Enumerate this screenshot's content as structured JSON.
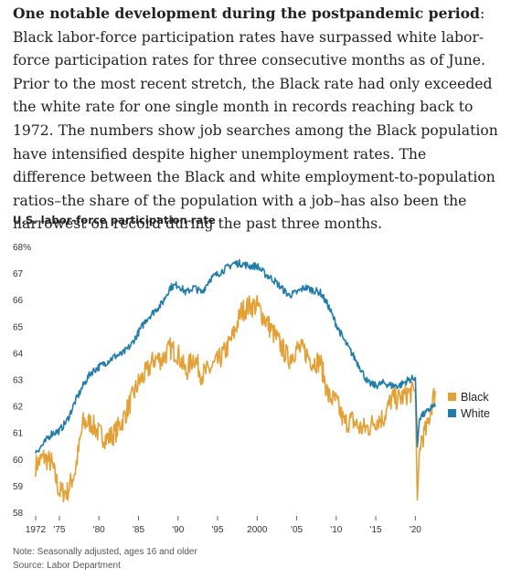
{
  "article": {
    "lead_bold": "One notable development during the postpandemic period",
    "lead_text": ": Black labor-force participation rates have surpassed white labor-force participation rates for three consecutive months as of June. Prior to the most recent stretch, the Black rate had only exceeded the white rate for one single month in records reaching back to 1972. The numbers show job searches among the Black population have intensified despite higher unemployment rates. The difference between the Black and white employment-to-population ratios–the share of the population with a job–has also been the narrowest on record during the past three months."
  },
  "chart_data": {
    "type": "line",
    "title": "U.S. labor-force participation rate",
    "xlim": [
      1972,
      2022.5
    ],
    "ylim": [
      58,
      68
    ],
    "y_ticks": [
      58,
      59,
      60,
      61,
      62,
      63,
      64,
      65,
      66,
      67,
      68
    ],
    "y_tick_labels": [
      "58",
      "59",
      "60",
      "61",
      "62",
      "63",
      "64",
      "65",
      "66",
      "67",
      "68%"
    ],
    "x_ticks": [
      1972,
      1975,
      1980,
      1985,
      1990,
      1995,
      2000,
      2005,
      2010,
      2015,
      2020
    ],
    "x_tick_labels": [
      "1972",
      "'75",
      "'80",
      "'85",
      "'90",
      "'95",
      "2000",
      "'05",
      "'10",
      "'15",
      "'20"
    ],
    "series": [
      {
        "name": "Black",
        "color": "#e3a035",
        "points": [
          [
            1972,
            59.8
          ],
          [
            1973,
            60.1
          ],
          [
            1974,
            59.9
          ],
          [
            1975,
            58.8
          ],
          [
            1976,
            58.8
          ],
          [
            1977,
            59.6
          ],
          [
            1978,
            61.4
          ],
          [
            1979,
            61.4
          ],
          [
            1980,
            61.0
          ],
          [
            1981,
            60.8
          ],
          [
            1982,
            61.0
          ],
          [
            1983,
            61.5
          ],
          [
            1984,
            62.2
          ],
          [
            1985,
            62.9
          ],
          [
            1986,
            63.3
          ],
          [
            1987,
            63.8
          ],
          [
            1988,
            63.8
          ],
          [
            1989,
            64.2
          ],
          [
            1990,
            64.0
          ],
          [
            1991,
            63.3
          ],
          [
            1992,
            63.9
          ],
          [
            1993,
            63.2
          ],
          [
            1994,
            63.4
          ],
          [
            1995,
            63.7
          ],
          [
            1996,
            64.1
          ],
          [
            1997,
            64.7
          ],
          [
            1998,
            65.6
          ],
          [
            1999,
            65.8
          ],
          [
            2000,
            65.8
          ],
          [
            2001,
            65.3
          ],
          [
            2002,
            64.8
          ],
          [
            2003,
            64.3
          ],
          [
            2004,
            63.8
          ],
          [
            2005,
            64.2
          ],
          [
            2006,
            64.1
          ],
          [
            2007,
            63.7
          ],
          [
            2008,
            63.7
          ],
          [
            2009,
            62.4
          ],
          [
            2010,
            62.2
          ],
          [
            2011,
            61.4
          ],
          [
            2012,
            61.5
          ],
          [
            2013,
            61.2
          ],
          [
            2014,
            61.2
          ],
          [
            2015,
            61.5
          ],
          [
            2016,
            61.6
          ],
          [
            2017,
            62.3
          ],
          [
            2018,
            62.3
          ],
          [
            2019,
            62.5
          ],
          [
            2020.0,
            62.6
          ],
          [
            2020.25,
            58.5
          ],
          [
            2020.5,
            60.3
          ],
          [
            2020.75,
            60.8
          ],
          [
            2021.0,
            60.9
          ],
          [
            2021.5,
            61.2
          ],
          [
            2022.0,
            62.0
          ],
          [
            2022.5,
            62.6
          ]
        ]
      },
      {
        "name": "White",
        "color": "#1f7cab",
        "points": [
          [
            1972,
            60.3
          ],
          [
            1973,
            60.6
          ],
          [
            1974,
            61.0
          ],
          [
            1975,
            61.1
          ],
          [
            1976,
            61.5
          ],
          [
            1977,
            62.2
          ],
          [
            1978,
            62.8
          ],
          [
            1979,
            63.3
          ],
          [
            1980,
            63.5
          ],
          [
            1981,
            63.7
          ],
          [
            1982,
            63.9
          ],
          [
            1983,
            64.0
          ],
          [
            1984,
            64.3
          ],
          [
            1985,
            64.8
          ],
          [
            1986,
            65.3
          ],
          [
            1987,
            65.6
          ],
          [
            1988,
            65.9
          ],
          [
            1989,
            66.5
          ],
          [
            1990,
            66.6
          ],
          [
            1991,
            66.3
          ],
          [
            1992,
            66.5
          ],
          [
            1993,
            66.3
          ],
          [
            1994,
            66.8
          ],
          [
            1995,
            67.0
          ],
          [
            1996,
            67.2
          ],
          [
            1997,
            67.4
          ],
          [
            1998,
            67.4
          ],
          [
            1999,
            67.3
          ],
          [
            2000,
            67.3
          ],
          [
            2001,
            67.0
          ],
          [
            2002,
            66.8
          ],
          [
            2003,
            66.5
          ],
          [
            2004,
            66.2
          ],
          [
            2005,
            66.3
          ],
          [
            2006,
            66.5
          ],
          [
            2007,
            66.4
          ],
          [
            2008,
            66.3
          ],
          [
            2009,
            65.8
          ],
          [
            2010,
            65.1
          ],
          [
            2011,
            64.5
          ],
          [
            2012,
            64.0
          ],
          [
            2013,
            63.5
          ],
          [
            2014,
            62.9
          ],
          [
            2015,
            62.8
          ],
          [
            2016,
            62.9
          ],
          [
            2017,
            62.8
          ],
          [
            2018,
            62.8
          ],
          [
            2019,
            63.0
          ],
          [
            2020.0,
            63.1
          ],
          [
            2020.25,
            60.5
          ],
          [
            2020.5,
            61.5
          ],
          [
            2020.75,
            61.7
          ],
          [
            2021.0,
            61.7
          ],
          [
            2021.5,
            61.8
          ],
          [
            2022.0,
            62.0
          ],
          [
            2022.5,
            62.0
          ]
        ]
      }
    ],
    "legend_position": "right",
    "grid": false
  },
  "footer": {
    "note": "Note: Seasonally adjusted, ages 16 and older",
    "source": "Source: Labor Department"
  }
}
